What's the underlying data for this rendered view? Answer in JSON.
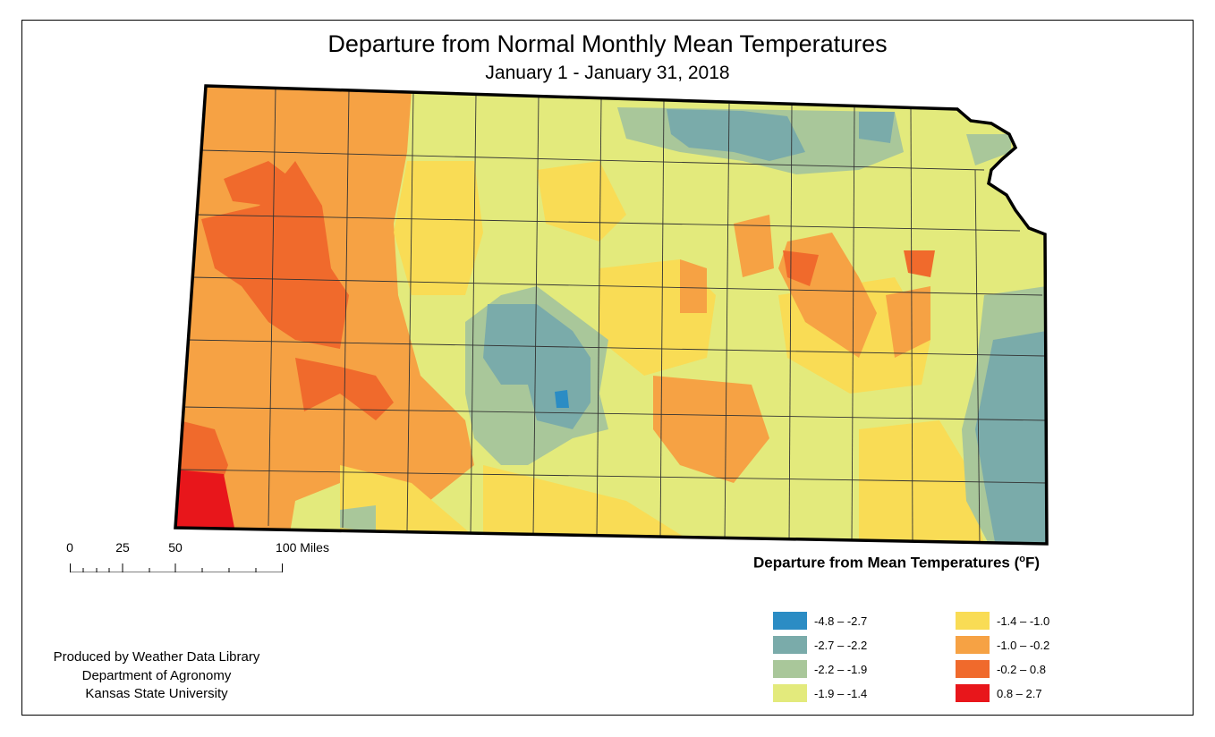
{
  "title": "Departure from Normal Monthly Mean Temperatures",
  "subtitle": "January 1 - January 31, 2018",
  "scale_bar": {
    "labels": [
      "0",
      "25",
      "50",
      "100 Miles"
    ]
  },
  "legend": {
    "title_main": "Departure from Mean Temperatures (",
    "title_sup": "o",
    "title_end": "F)",
    "classes": [
      {
        "label": "-4.8 – -2.7",
        "color": "#2b8cc4"
      },
      {
        "label": "-2.7 – -2.2",
        "color": "#7aabaa"
      },
      {
        "label": "-2.2 – -1.9",
        "color": "#a9c79a"
      },
      {
        "label": "-1.9 – -1.4",
        "color": "#e3ea7c"
      },
      {
        "label": "-1.4 – -1.0",
        "color": "#f9dc55"
      },
      {
        "label": "-1.0 – -0.2",
        "color": "#f6a244"
      },
      {
        "label": "-0.2 – 0.8",
        "color": "#f06a2c"
      },
      {
        "label": "0.8 – 2.7",
        "color": "#e8161b"
      }
    ]
  },
  "credits": {
    "line1": "Produced by Weather Data Library",
    "line2": "Department of Agronomy",
    "line3": "Kansas State University"
  },
  "map_colors": {
    "outline": "#000000",
    "county_lines": "#333333"
  }
}
